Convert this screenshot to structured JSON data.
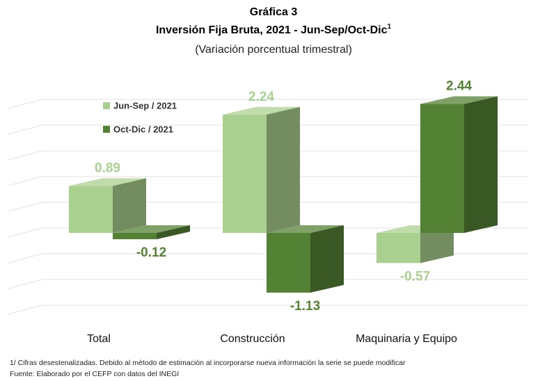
{
  "chart_data": {
    "type": "bar3d",
    "heading": "Gráfica 3",
    "title": "Inversión Fija Bruta, 2021 - Jun-Sep/Oct-Dic",
    "title_footnote_mark": "1",
    "subtitle": "(Variación porcentual trimestral)",
    "categories": [
      "Total",
      "Construcción",
      "Maquinaria y Equipo"
    ],
    "series": [
      {
        "name": "Jun-Sep / 2021",
        "color": "#a9d08e",
        "values": [
          0.89,
          2.24,
          -0.57
        ]
      },
      {
        "name": "Oct-Dic / 2021",
        "color": "#548235",
        "values": [
          -0.12,
          -1.13,
          2.44
        ]
      }
    ],
    "ylim": [
      -1.5,
      2.5
    ],
    "notes": [
      "1/ Cifras desestenalizadas. Debido al método de estimación al incorporarse nueva información la serie se puede modificar",
      "Fuente: Elaborado por el CEFP con datos del INEGI"
    ]
  }
}
